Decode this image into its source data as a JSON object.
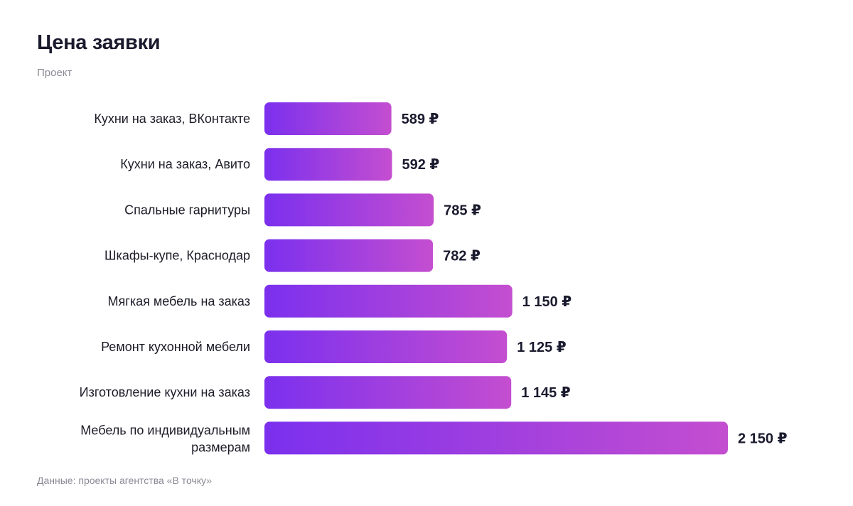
{
  "header": {
    "title": "Цена заявки",
    "subtitle": "Проект"
  },
  "footer": {
    "source": "Данные: проекты агентства «В точку»"
  },
  "colors": {
    "bar_gradient_start": "#7b30ee",
    "bar_gradient_end": "#c44ed0"
  },
  "chart_data": {
    "type": "bar",
    "orientation": "horizontal",
    "title": "Цена заявки",
    "subtitle": "Проект",
    "unit": "₽",
    "categories": [
      "Кухни на заказ, ВКонтакте",
      "Кухни на заказ, Авито",
      "Спальные гарнитуры",
      "Шкафы-купе, Краснодар",
      "Мягкая мебель на заказ",
      "Ремонт кухонной мебели",
      "Изготовление кухни на заказ",
      "Мебель по индивидуальным размерам"
    ],
    "values": [
      589,
      592,
      785,
      782,
      1150,
      1125,
      1145,
      2150
    ],
    "value_labels": [
      "589 ₽",
      "592 ₽",
      "785 ₽",
      "782 ₽",
      "1 150 ₽",
      "1 125 ₽",
      "1 145 ₽",
      "2 150 ₽"
    ],
    "xlim": [
      0,
      2150
    ],
    "grid": false,
    "legend": "none"
  }
}
